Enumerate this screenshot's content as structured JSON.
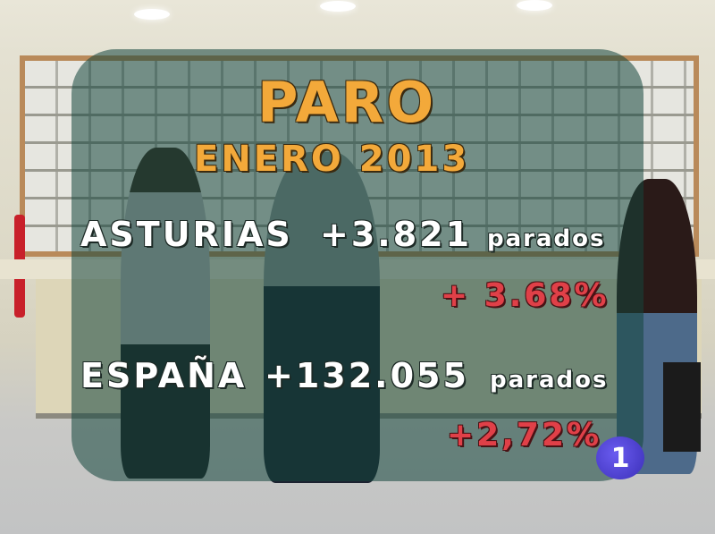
{
  "graphic": {
    "title": "PARO",
    "subtitle": "ENERO 2013",
    "rows": [
      {
        "region": "ASTURIAS",
        "value": "+3.821",
        "unit": "parados",
        "change": "+ 3.68%"
      },
      {
        "region": "ESPAÑA",
        "value": "+132.055",
        "unit": "parados",
        "change": "+2,72%"
      }
    ]
  },
  "channel_logo": {
    "text": "1"
  },
  "colors": {
    "title": "#f3a93a",
    "figures": "#ffffff",
    "change": "#e04048",
    "logo": "#4a3cd0"
  }
}
